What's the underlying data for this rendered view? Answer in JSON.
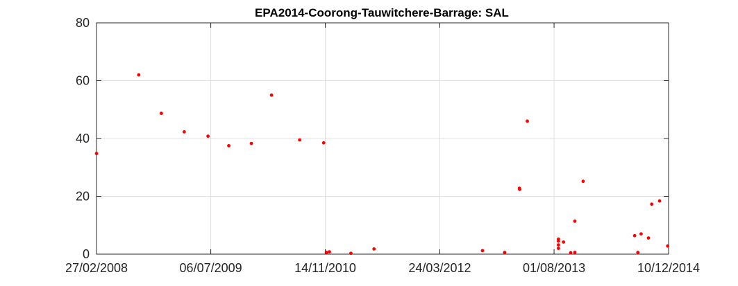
{
  "chart_data": {
    "type": "scatter",
    "title": "EPA2014-Coorong-Tauwitchere-Barrage: SAL",
    "xlabel": "",
    "ylabel": "",
    "x_type": "date",
    "xlim": [
      "2008-02-27",
      "2014-12-10"
    ],
    "ylim": [
      0,
      80
    ],
    "x_ticks": [
      {
        "date": "2008-02-27",
        "label": "27/02/2008"
      },
      {
        "date": "2009-07-06",
        "label": "06/07/2009"
      },
      {
        "date": "2010-11-14",
        "label": "14/11/2010"
      },
      {
        "date": "2012-03-24",
        "label": "24/03/2012"
      },
      {
        "date": "2013-08-01",
        "label": "01/08/2013"
      },
      {
        "date": "2014-12-10",
        "label": "10/12/2014"
      }
    ],
    "y_ticks": [
      0,
      20,
      40,
      60,
      80
    ],
    "grid": true,
    "marker_color": "#ff0000",
    "series": [
      {
        "name": "",
        "points": [
          {
            "x": "2008-02-27",
            "y": 34.8
          },
          {
            "x": "2008-08-28",
            "y": 62.0
          },
          {
            "x": "2008-12-04",
            "y": 48.7
          },
          {
            "x": "2009-03-13",
            "y": 42.3
          },
          {
            "x": "2009-06-24",
            "y": 40.8
          },
          {
            "x": "2009-09-22",
            "y": 37.5
          },
          {
            "x": "2009-12-29",
            "y": 38.3
          },
          {
            "x": "2010-03-26",
            "y": 55.0
          },
          {
            "x": "2010-07-26",
            "y": 39.5
          },
          {
            "x": "2010-11-07",
            "y": 38.5
          },
          {
            "x": "2010-11-19",
            "y": 0.6
          },
          {
            "x": "2010-12-02",
            "y": 0.8
          },
          {
            "x": "2011-03-05",
            "y": 0.3
          },
          {
            "x": "2011-06-13",
            "y": 1.8
          },
          {
            "x": "2012-09-25",
            "y": 1.2
          },
          {
            "x": "2012-12-30",
            "y": 0.6
          },
          {
            "x": "2013-03-04",
            "y": 22.8
          },
          {
            "x": "2013-03-05",
            "y": 22.4
          },
          {
            "x": "2013-04-07",
            "y": 46.0
          },
          {
            "x": "2013-08-20",
            "y": 5.2
          },
          {
            "x": "2013-08-20",
            "y": 4.5
          },
          {
            "x": "2013-08-20",
            "y": 3.2
          },
          {
            "x": "2013-08-20",
            "y": 2.0
          },
          {
            "x": "2013-09-11",
            "y": 4.2
          },
          {
            "x": "2013-10-12",
            "y": 0.5
          },
          {
            "x": "2013-10-30",
            "y": 11.4
          },
          {
            "x": "2013-10-30",
            "y": 0.6
          },
          {
            "x": "2013-12-05",
            "y": 25.2
          },
          {
            "x": "2014-07-16",
            "y": 6.4
          },
          {
            "x": "2014-07-30",
            "y": 0.6
          },
          {
            "x": "2014-08-13",
            "y": 7.0
          },
          {
            "x": "2014-09-14",
            "y": 5.6
          },
          {
            "x": "2014-09-28",
            "y": 17.3
          },
          {
            "x": "2014-11-01",
            "y": 18.4
          },
          {
            "x": "2014-12-06",
            "y": 2.8
          }
        ]
      }
    ]
  }
}
